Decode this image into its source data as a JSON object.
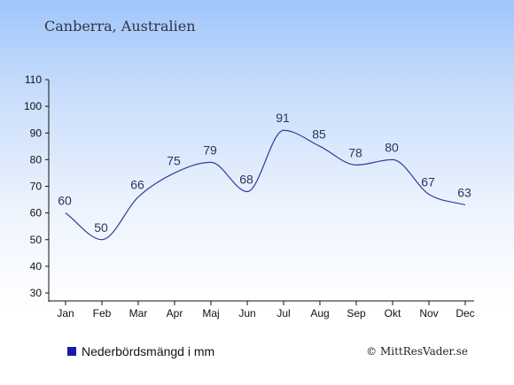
{
  "header": {
    "title": "Canberra, Australien"
  },
  "legend": {
    "label": "Nederbördsmängd i mm",
    "color": "#1a1aa8"
  },
  "footer": {
    "copyright": "© MittResVader.se"
  },
  "chart_data": {
    "type": "line",
    "title": "Canberra, Australien",
    "xlabel": "",
    "ylabel": "",
    "categories": [
      "Jan",
      "Feb",
      "Mar",
      "Apr",
      "Maj",
      "Jun",
      "Jul",
      "Aug",
      "Sep",
      "Okt",
      "Nov",
      "Dec"
    ],
    "series": [
      {
        "name": "Nederbördsmängd i mm",
        "values": [
          60,
          50,
          66,
          75,
          79,
          68,
          91,
          85,
          78,
          80,
          67,
          63
        ]
      }
    ],
    "ylim": [
      30,
      110
    ],
    "yticks": [
      30,
      40,
      50,
      60,
      70,
      80,
      90,
      100,
      110
    ],
    "data_labels": true,
    "grid": false,
    "legend_position": "bottom-left",
    "line_color": "#2b3f9a"
  }
}
